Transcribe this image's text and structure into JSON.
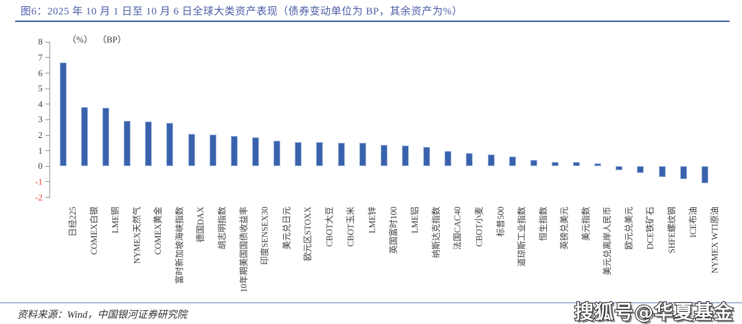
{
  "header": {
    "title": "图6：2025 年 10 月 1 日至 10 月 6 日全球大类资产表现（债券变动单位为 BP，其余资产为%）"
  },
  "chart_data": {
    "type": "bar",
    "title": "2025 年 10 月 1 日至 10 月 6 日全球大类资产表现（债券变动单位为 BP，其余资产为%）",
    "unit_labels": [
      "（%）",
      "（BP）"
    ],
    "categories": [
      "日经225",
      "COMEX白银",
      "LME铜",
      "NYMEX天然气",
      "COMEX黄金",
      "富时新加坡海峡指数",
      "德国DAX",
      "胡志明指数",
      "10年期美国国债收益率",
      "印度SENSEX30",
      "美元兑日元",
      "欧元区STOXX",
      "CBOT大豆",
      "CBOT玉米",
      "LME锌",
      "英国富时100",
      "LME铝",
      "纳斯达克指数",
      "法国CAC40",
      "CBOT小麦",
      "标普500",
      "道琼斯工业指数",
      "恒生指数",
      "英镑兑美元",
      "美元指数",
      "美元兑离岸人民币",
      "欧元兑美元",
      "DCE铁矿石",
      "SHFE螺纹钢",
      "ICE布油",
      "NYMEX WTI原油"
    ],
    "values": [
      6.7,
      3.8,
      3.77,
      2.95,
      2.87,
      2.8,
      2.1,
      2.03,
      1.97,
      1.88,
      1.65,
      1.58,
      1.55,
      1.52,
      1.5,
      1.4,
      1.35,
      1.25,
      0.97,
      0.87,
      0.75,
      0.64,
      0.4,
      0.3,
      0.27,
      0.2,
      -0.27,
      -0.44,
      -0.7,
      -0.83,
      -1.07
    ],
    "xlabel": "",
    "ylabel": "",
    "ylim": [
      -2,
      8
    ],
    "yticks": [
      8,
      7,
      6,
      5,
      4,
      3,
      2,
      1,
      0,
      -1,
      -2
    ],
    "grid": false,
    "legend": false,
    "bar_color": "#3A62AC",
    "bar_border_color": "#A3BEE0",
    "tick_color": "#3F3F3F",
    "negative_tick_color": "#E8402C"
  },
  "footer": {
    "source": "资料来源：Wind，中国银河证券研究院",
    "watermark": "搜狐号@华夏基金"
  }
}
